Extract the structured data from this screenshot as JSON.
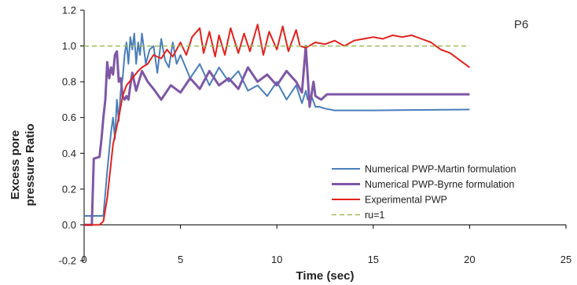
{
  "chart_data": {
    "type": "line",
    "xlabel": "Time (sec)",
    "ylabel": [
      "Excess pore",
      "pressure Ratio"
    ],
    "annotation": "P6",
    "xlim": [
      0,
      25
    ],
    "ylim": [
      -0.2,
      1.2
    ],
    "x_ticks": [
      "0",
      "5",
      "10",
      "15",
      "20",
      "25"
    ],
    "y_ticks": [
      "-0.2",
      "0.0",
      "0.2",
      "0.4",
      "0.6",
      "0.8",
      "1.0",
      "1.2"
    ],
    "grid": false,
    "legend_position": "bottom-right",
    "series": [
      {
        "name": "Numerical PWP-Martin formulation",
        "color": "#4a7ebb",
        "x": [
          0,
          0.5,
          1.0,
          1.2,
          1.4,
          1.5,
          1.6,
          1.7,
          1.8,
          1.9,
          2.0,
          2.1,
          2.2,
          2.3,
          2.4,
          2.5,
          2.6,
          2.7,
          2.8,
          2.9,
          3.0,
          3.2,
          3.4,
          3.6,
          3.8,
          4.0,
          4.2,
          4.4,
          4.6,
          4.8,
          5.0,
          5.5,
          6.0,
          6.5,
          7.0,
          7.5,
          8.0,
          8.5,
          9.0,
          9.5,
          10.0,
          10.5,
          11.0,
          11.3,
          11.5,
          11.6,
          11.8,
          12.0,
          12.2,
          12.5,
          13.0,
          15.0,
          20.0
        ],
        "y": [
          0.05,
          0.05,
          0.05,
          0.3,
          0.52,
          0.6,
          0.48,
          0.7,
          0.58,
          0.75,
          0.82,
          0.95,
          1.02,
          0.9,
          1.05,
          0.98,
          1.07,
          0.9,
          1.02,
          0.95,
          1.07,
          0.9,
          0.98,
          1.0,
          0.85,
          1.04,
          0.92,
          0.88,
          1.02,
          0.9,
          0.95,
          0.82,
          0.9,
          0.78,
          0.88,
          0.8,
          0.86,
          0.75,
          0.78,
          0.72,
          0.8,
          0.7,
          0.78,
          0.68,
          0.75,
          0.7,
          0.72,
          0.66,
          0.66,
          0.65,
          0.64,
          0.64,
          0.645
        ]
      },
      {
        "name": "Numerical PWP-Byrne formulation",
        "color": "#7e57a6",
        "x": [
          0,
          0.4,
          0.5,
          0.8,
          0.9,
          1.0,
          1.1,
          1.2,
          1.3,
          1.4,
          1.5,
          1.6,
          1.7,
          1.8,
          1.9,
          2.0,
          2.1,
          2.2,
          2.3,
          2.4,
          2.5,
          2.7,
          3.0,
          3.3,
          3.6,
          4.0,
          4.5,
          5.0,
          5.5,
          6.0,
          6.5,
          7.0,
          7.5,
          8.0,
          8.5,
          9.0,
          9.5,
          10.0,
          10.5,
          11.0,
          11.3,
          11.5,
          11.7,
          11.9,
          12.0,
          12.3,
          12.6,
          13.0,
          15.0,
          20.0
        ],
        "y": [
          0.0,
          0.0,
          0.37,
          0.38,
          0.48,
          0.6,
          0.7,
          0.91,
          0.82,
          0.88,
          0.84,
          0.95,
          0.97,
          0.8,
          0.82,
          0.72,
          0.7,
          0.72,
          0.7,
          0.78,
          0.85,
          0.75,
          0.86,
          0.8,
          0.76,
          0.7,
          0.78,
          0.74,
          0.82,
          0.76,
          0.86,
          0.78,
          0.82,
          0.76,
          0.88,
          0.8,
          0.84,
          0.78,
          0.86,
          0.8,
          0.74,
          1.0,
          0.66,
          0.8,
          0.72,
          0.7,
          0.73,
          0.73,
          0.73,
          0.73
        ]
      },
      {
        "name": "Experimental PWP",
        "color": "#e3211c",
        "x": [
          0,
          0.8,
          1.0,
          1.2,
          1.5,
          1.8,
          2.0,
          2.2,
          2.5,
          2.8,
          3.0,
          3.3,
          3.6,
          4.0,
          4.3,
          4.6,
          5.0,
          5.3,
          5.6,
          6.0,
          6.2,
          6.5,
          6.8,
          7.0,
          7.3,
          7.6,
          8.0,
          8.3,
          8.6,
          9.0,
          9.3,
          9.6,
          10.0,
          10.3,
          10.6,
          11.0,
          11.2,
          11.5,
          12.0,
          12.5,
          13.0,
          13.5,
          14.0,
          14.5,
          15.0,
          15.5,
          16.0,
          16.5,
          17.0,
          17.5,
          18.0,
          18.5,
          19.0,
          19.5,
          20.0
        ],
        "y": [
          0.0,
          0.0,
          0.02,
          0.15,
          0.45,
          0.6,
          0.72,
          0.78,
          0.82,
          0.86,
          0.88,
          0.9,
          0.95,
          0.93,
          0.98,
          0.94,
          1.02,
          0.95,
          1.05,
          1.1,
          0.96,
          1.08,
          0.94,
          1.06,
          0.95,
          1.1,
          0.96,
          1.07,
          0.97,
          1.12,
          0.95,
          1.08,
          0.98,
          1.11,
          0.97,
          1.09,
          1.0,
          0.99,
          1.02,
          1.01,
          1.03,
          1.0,
          1.03,
          1.04,
          1.05,
          1.04,
          1.06,
          1.05,
          1.06,
          1.04,
          1.02,
          0.98,
          0.96,
          0.92,
          0.88
        ]
      },
      {
        "name": "ru=1",
        "color": "#9bbb59",
        "dashed": true,
        "x": [
          0,
          20
        ],
        "y": [
          1.0,
          1.0
        ]
      }
    ]
  }
}
